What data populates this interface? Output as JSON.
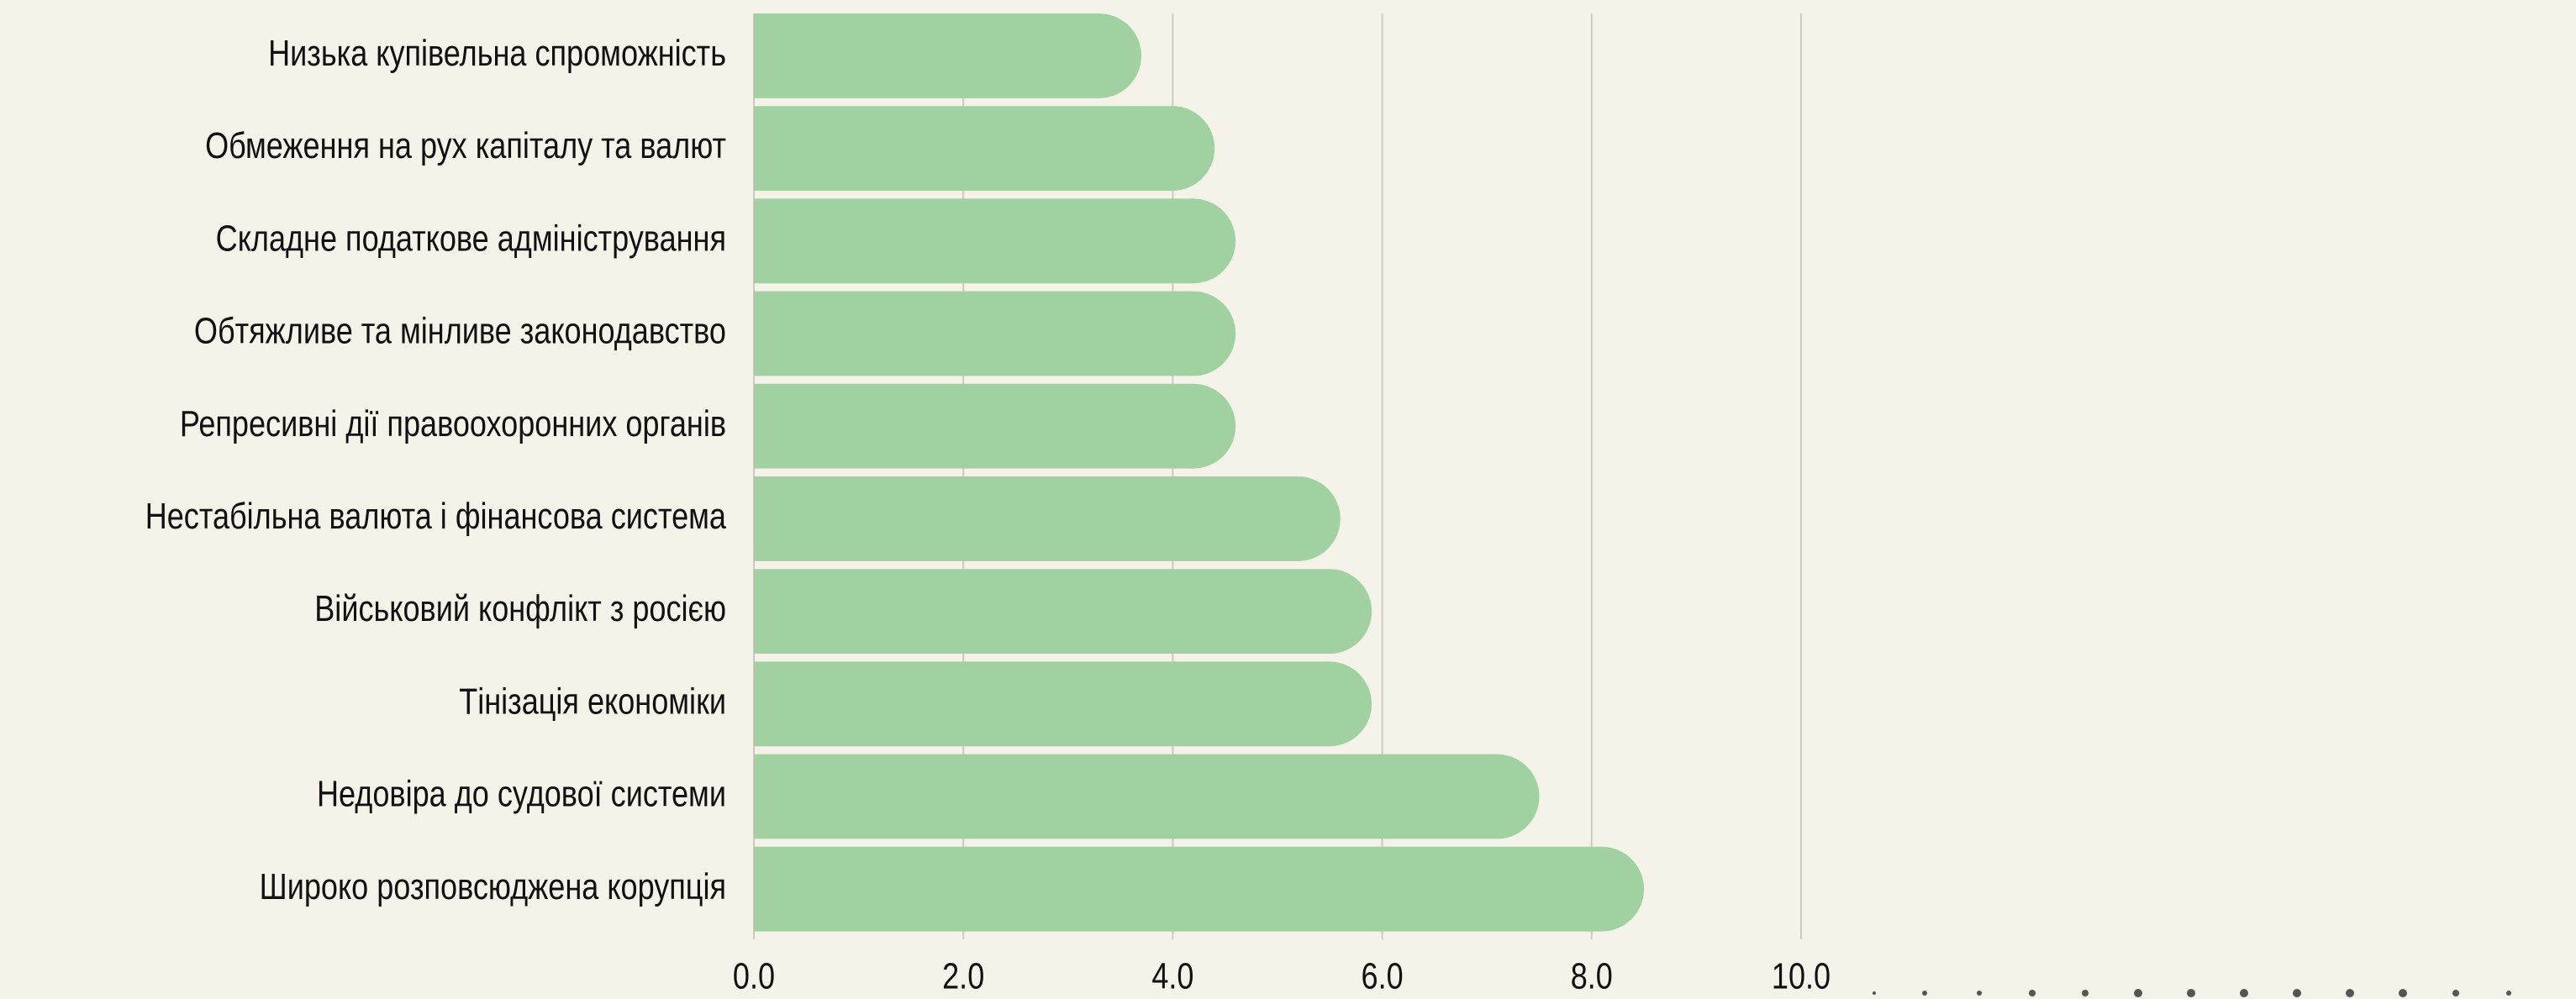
{
  "chart_data": {
    "type": "bar",
    "orientation": "horizontal",
    "categories": [
      "Низька купівельна спроможність",
      "Обмеження на рух капіталу та валют",
      "Складне податкове адміністрування",
      "Обтяжливе та мінливе законодавство",
      "Репресивні дії правоохоронних органів",
      "Нестабільна валюта і фінансова система",
      "Військовий конфлікт з росією",
      "Тінізація економіки",
      "Недовіра до судової системи",
      "Широко розповсюджена корупція"
    ],
    "values": [
      3.7,
      4.4,
      4.6,
      4.6,
      4.6,
      5.6,
      5.9,
      5.9,
      7.5,
      8.5
    ],
    "color": "#a1d1a1",
    "xlim": [
      0,
      10
    ],
    "xticks": [
      {
        "value": 0,
        "label": "0.0"
      },
      {
        "value": 2,
        "label": "2.0"
      },
      {
        "value": 4,
        "label": "4.0"
      },
      {
        "value": 6,
        "label": "6.0"
      },
      {
        "value": 8,
        "label": "8.0"
      },
      {
        "value": 10,
        "label": "10.0"
      }
    ],
    "grid": true
  }
}
